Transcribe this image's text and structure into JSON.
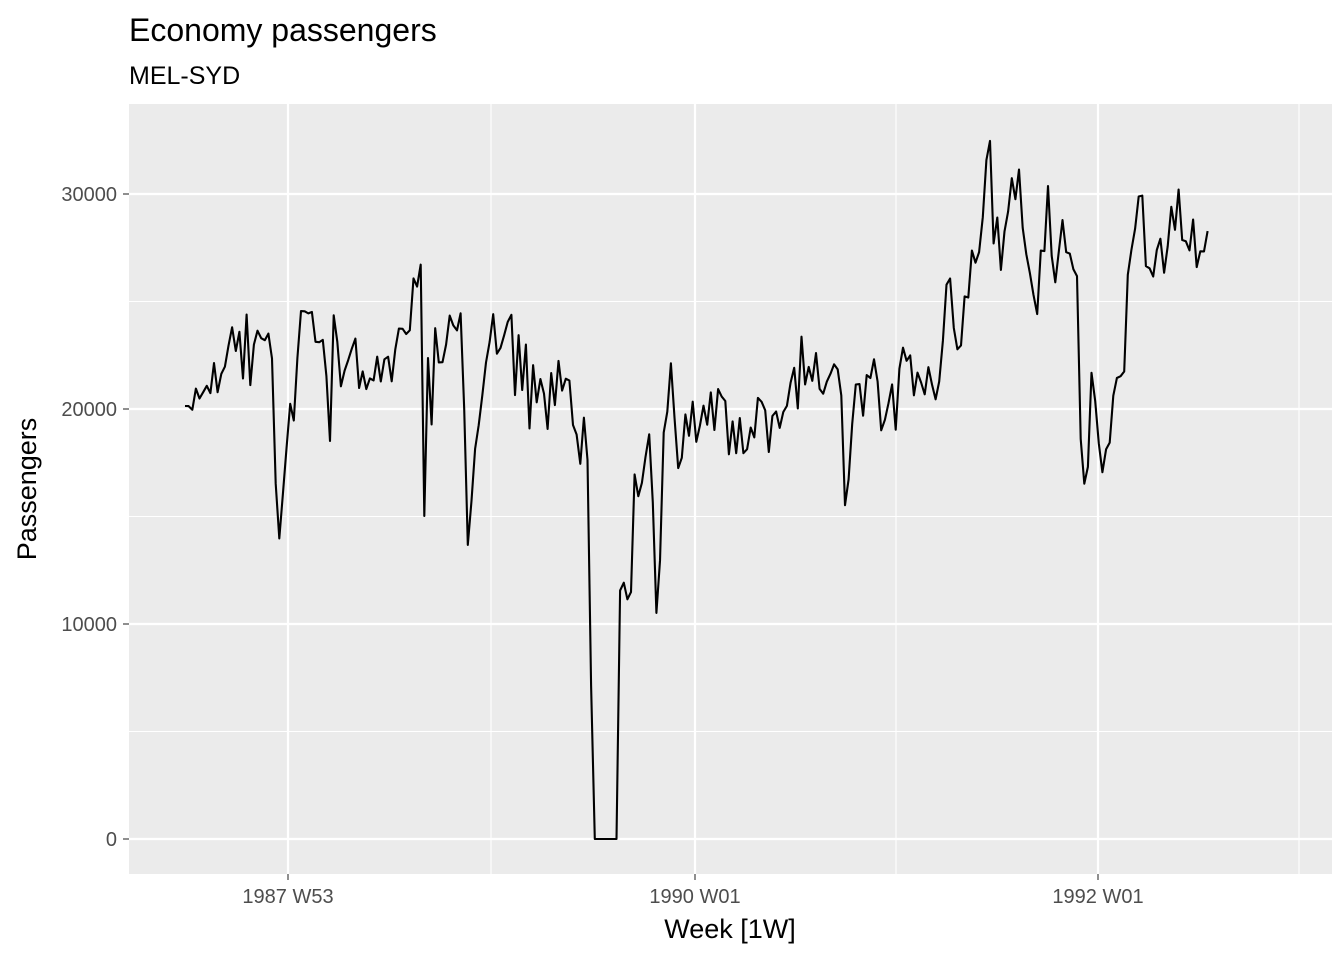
{
  "chart_data": {
    "type": "line",
    "title": "Economy passengers",
    "subtitle": "MEL-SYD",
    "xlabel": "Week [1W]",
    "ylabel": "Passengers",
    "x_ticks": [
      "1987 W53",
      "1990 W01",
      "1992 W01"
    ],
    "y_ticks": [
      "0",
      "10000",
      "20000",
      "30000"
    ],
    "ylim": [
      -1600,
      33500
    ],
    "grid": true,
    "x_unit": "weeks since 1987 W27",
    "series": [
      {
        "values": [
          20139,
          20134,
          19964,
          20951,
          20488,
          20775,
          21080,
          20739,
          22136,
          20781,
          21633,
          21967,
          22944,
          23801,
          22699,
          23590,
          21420,
          24394,
          21110,
          22997,
          23643,
          23292,
          23198,
          23508,
          22348,
          16526,
          13980,
          16049,
          18168,
          20243,
          19466,
          22370,
          24555,
          24543,
          24448,
          24512,
          23127,
          23107,
          23212,
          21536,
          18513,
          24358,
          23131,
          21057,
          21784,
          22274,
          22806,
          23274,
          20976,
          21747,
          20924,
          21423,
          21330,
          22432,
          21277,
          22313,
          22433,
          21289,
          22777,
          23738,
          23731,
          23488,
          23661,
          26076,
          25691,
          26718,
          15021,
          22371,
          19281,
          23760,
          22166,
          22175,
          23000,
          24343,
          23888,
          23655,
          24449,
          20003,
          13680,
          15731,
          18145,
          19251,
          20627,
          22165,
          23113,
          24411,
          22570,
          22840,
          23423,
          24048,
          24381,
          20648,
          23431,
          20882,
          22994,
          19093,
          22038,
          20311,
          21395,
          20715,
          19073,
          21671,
          20180,
          22236,
          20855,
          21408,
          21319,
          19254,
          18814,
          17451,
          19596,
          17635,
          7120,
          0,
          0,
          0,
          0,
          0,
          0,
          0,
          11560,
          11923,
          11149,
          11489,
          16957,
          15942,
          16563,
          17767,
          18825,
          15661,
          10518,
          12942,
          18901,
          19875,
          22126,
          19600,
          17249,
          17729,
          19749,
          18754,
          20340,
          18475,
          19221,
          20154,
          19269,
          20772,
          19023,
          20927,
          20577,
          20371,
          17891,
          19422,
          17944,
          19582,
          17946,
          18129,
          19141,
          18678,
          20516,
          20336,
          19939,
          18001,
          19675,
          19886,
          19120,
          19860,
          20146,
          21228,
          21916,
          20029,
          23364,
          21144,
          21958,
          21310,
          22602,
          20936,
          20713,
          21271,
          21640,
          22080,
          21843,
          20626,
          15524,
          16729,
          19302,
          21139,
          21158,
          19689,
          21576,
          21444,
          22312,
          21281,
          19009,
          19497,
          20271,
          21143,
          19036,
          21875,
          22852,
          22244,
          22494,
          20638,
          21695,
          21232,
          20686,
          21943,
          21138,
          20449,
          21279,
          23178,
          25783,
          26071,
          23769,
          22779,
          22960,
          25236,
          25187,
          27371,
          26804,
          27299,
          28926,
          31579,
          32468,
          27700,
          28907,
          26471,
          28262,
          29181,
          30736,
          29757,
          31140,
          28426,
          27200,
          26316,
          25305,
          24412,
          27370,
          27344,
          30366,
          27121,
          25892,
          27365,
          28785,
          27293,
          27226,
          26497,
          26183,
          18610,
          16527,
          17305,
          21683,
          20373,
          18399,
          17062,
          18130,
          18435,
          20618,
          21440,
          21524,
          21742,
          26242,
          27397,
          28386,
          29886,
          29927,
          26645,
          26543,
          26165,
          27397,
          27923,
          26341,
          27566,
          29406,
          28336,
          30211,
          27860,
          27804,
          27377,
          28812,
          26602,
          27336,
          27328,
          28274
        ]
      }
    ]
  }
}
